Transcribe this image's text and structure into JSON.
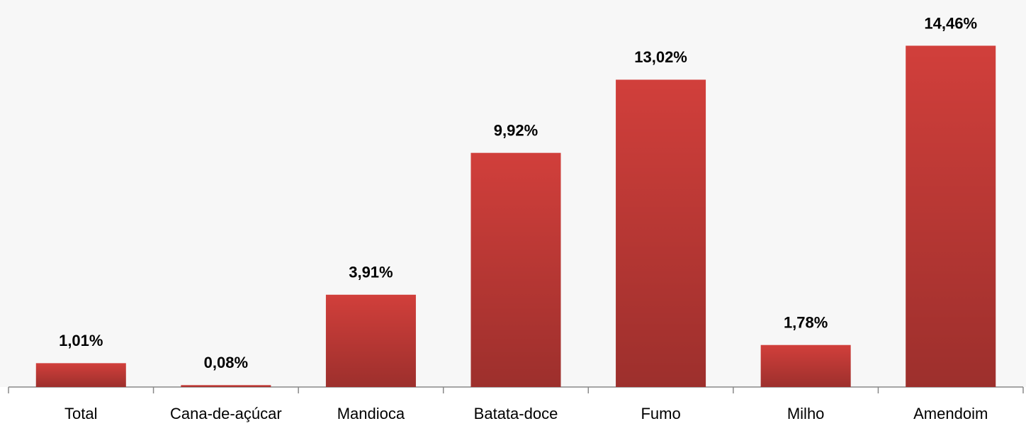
{
  "chart_data": {
    "type": "bar",
    "categories": [
      "Total",
      "Cana-de-açúcar",
      "Mandioca",
      "Batata-doce",
      "Fumo",
      "Milho",
      "Amendoim"
    ],
    "values": [
      1.01,
      0.08,
      3.91,
      9.92,
      13.02,
      1.78,
      14.46
    ],
    "value_labels": [
      "1,01%",
      "0,08%",
      "3,91%",
      "9,92%",
      "13,02%",
      "1,78%",
      "14,46%"
    ],
    "color": "#d13f3b"
  }
}
